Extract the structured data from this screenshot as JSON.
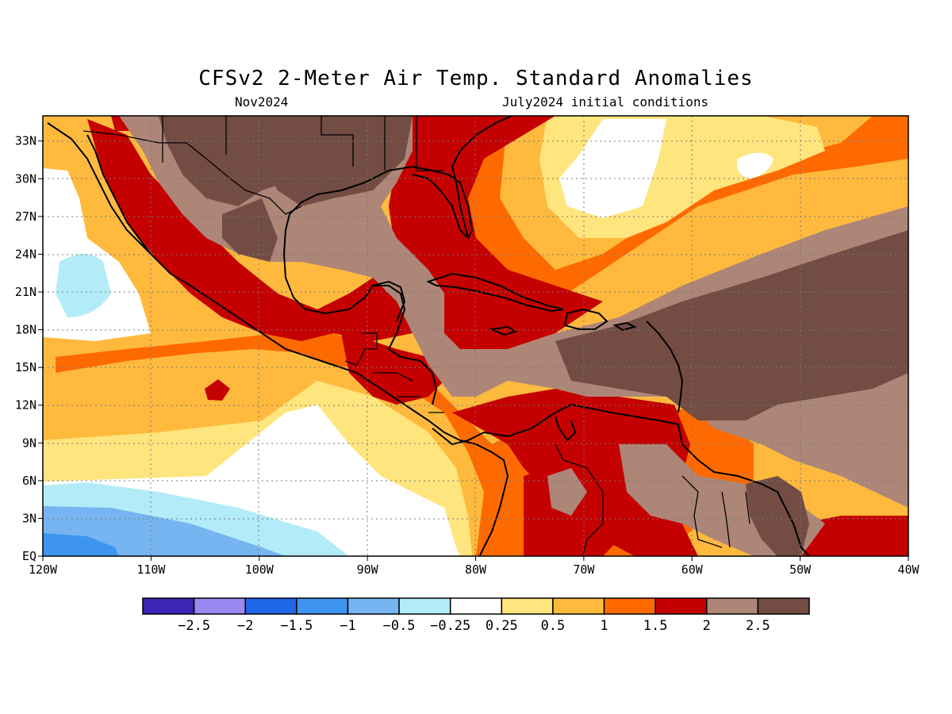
{
  "title": "CFSv2 2-Meter Air Temp. Standard Anomalies",
  "subtitle_left": "Nov2024",
  "subtitle_right": "July2024 initial conditions",
  "map": {
    "lon_range": [
      -120,
      -40
    ],
    "lat_range": [
      0,
      35
    ],
    "lon_ticks": [
      "120W",
      "110W",
      "100W",
      "90W",
      "80W",
      "70W",
      "60W",
      "50W",
      "40W"
    ],
    "lat_ticks": [
      "EQ",
      "3N",
      "6N",
      "9N",
      "12N",
      "15N",
      "18N",
      "21N",
      "24N",
      "27N",
      "30N",
      "33N"
    ],
    "grid": "dotted"
  },
  "colorbar": {
    "colors": [
      "#3b26b5",
      "#9b87f0",
      "#1f66e8",
      "#3d95f0",
      "#76b5f2",
      "#b3ecf8",
      "#ffffff",
      "#ffe57e",
      "#ffba3e",
      "#ff6a00",
      "#c50000",
      "#ad8678",
      "#734c44"
    ],
    "labels": [
      "-2.5",
      "-2",
      "-1.5",
      "-1",
      "-0.5",
      "-0.25",
      "0.25",
      "0.5",
      "1",
      "1.5",
      "2",
      "2.5"
    ]
  },
  "colors": {
    "lt_neg_025": "#b3ecf8",
    "neg_05": "#76b5f2",
    "neg_1": "#3d95f0",
    "neutral": "#ffffff",
    "pos_025": "#ffe57e",
    "pos_05": "#ffba3e",
    "pos_1": "#ff6a00",
    "pos_15": "#c50000",
    "pos_2": "#ad8678",
    "pos_25": "#734c44"
  }
}
